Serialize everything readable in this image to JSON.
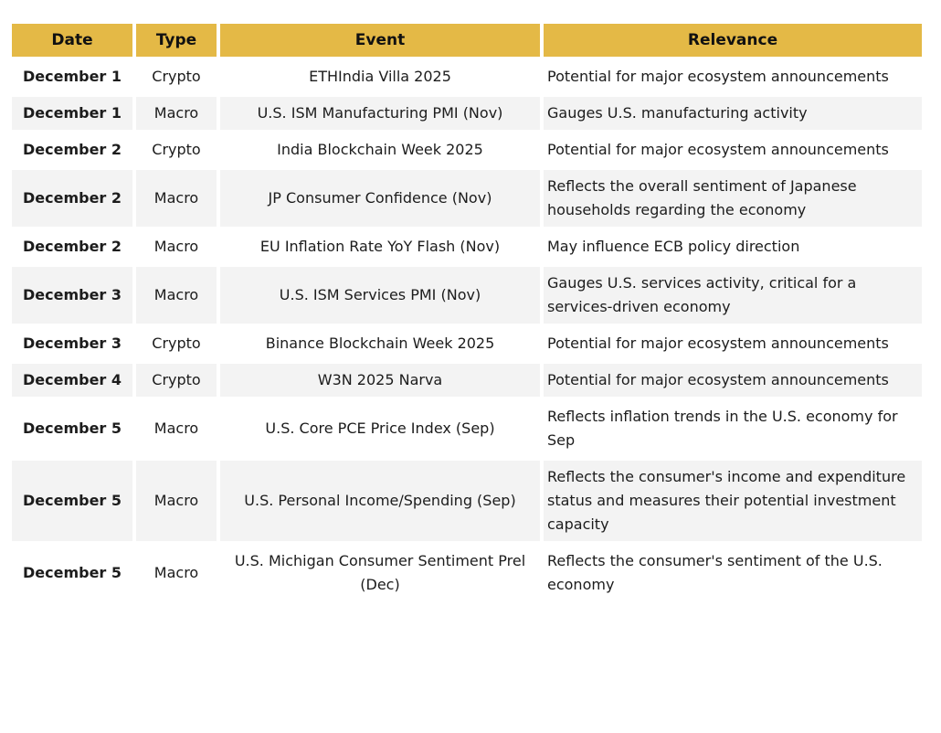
{
  "table": {
    "columns": [
      {
        "key": "date",
        "label": "Date"
      },
      {
        "key": "type",
        "label": "Type"
      },
      {
        "key": "event",
        "label": "Event"
      },
      {
        "key": "relevance",
        "label": "Relevance"
      }
    ],
    "rows": [
      {
        "date": "December 1",
        "type": "Crypto",
        "event": "ETHIndia Villa 2025",
        "relevance": "Potential for major ecosystem announcements"
      },
      {
        "date": "December 1",
        "type": "Macro",
        "event": "U.S. ISM Manufacturing PMI (Nov)",
        "relevance": "Gauges U.S. manufacturing activity"
      },
      {
        "date": "December 2",
        "type": "Crypto",
        "event": "India Blockchain Week 2025",
        "relevance": "Potential for major ecosystem announcements"
      },
      {
        "date": "December 2",
        "type": "Macro",
        "event": "JP Consumer Confidence (Nov)",
        "relevance": "Reflects the overall sentiment of Japanese households regarding the economy"
      },
      {
        "date": "December 2",
        "type": "Macro",
        "event": "EU Inflation Rate YoY Flash (Nov)",
        "relevance": "May influence ECB policy direction"
      },
      {
        "date": "December 3",
        "type": "Macro",
        "event": "U.S. ISM Services PMI (Nov)",
        "relevance": "Gauges U.S. services activity, critical for a services-driven economy"
      },
      {
        "date": "December 3",
        "type": "Crypto",
        "event": "Binance Blockchain Week 2025",
        "relevance": "Potential for major ecosystem announcements"
      },
      {
        "date": "December 4",
        "type": "Crypto",
        "event": "W3N 2025 Narva",
        "relevance": "Potential for major ecosystem announcements"
      },
      {
        "date": "December 5",
        "type": "Macro",
        "event": "U.S. Core PCE Price Index (Sep)",
        "relevance": "Reflects inflation trends in the U.S. economy for Sep"
      },
      {
        "date": "December 5",
        "type": "Macro",
        "event": "U.S. Personal Income/Spending (Sep)",
        "relevance": "Reflects the consumer's income and expenditure status and measures their potential investment capacity"
      },
      {
        "date": "December 5",
        "type": "Macro",
        "event": "U.S. Michigan Consumer Sentiment Prel (Dec)",
        "relevance": "Reflects the consumer's sentiment of the U.S. economy"
      }
    ]
  },
  "colors": {
    "header_bg": "#E4B946",
    "row_alt_bg": "#F3F3F3",
    "text": "#1C1C1C",
    "header_text": "#111111"
  }
}
